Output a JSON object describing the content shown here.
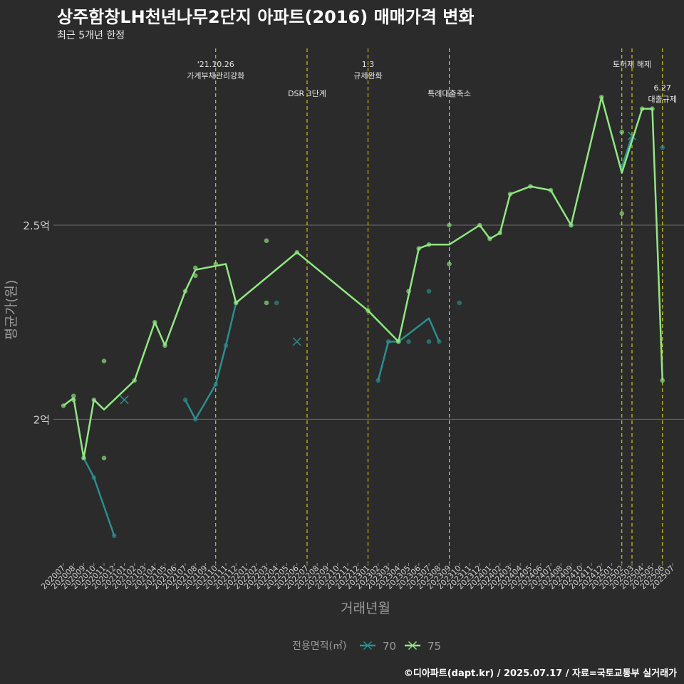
{
  "title": "상주함창LH천년나무2단지 아파트(2016) 매매가격 변화",
  "subtitle": "최근 5개년 한정",
  "caption": "©디아파트(dapt.kr) / 2025.07.17 / 자료=국토교통부 실거래가",
  "colors": {
    "background": "#2b2b2b",
    "grid": "#6e6e6e",
    "event_line": "#e8e800",
    "series_70": "#2a8f8f",
    "series_75": "#90e880",
    "axis_text": "#9a9a9a"
  },
  "chart_data": {
    "type": "line",
    "title": "상주함창LH천년나무2단지 아파트(2016) 매매가격 변화",
    "xlabel": "거래년월",
    "ylabel": "평균가(원)",
    "ylim": [
      1.63,
      2.97
    ],
    "y_ticks": [
      {
        "value": 2.0,
        "label": "2억"
      },
      {
        "value": 2.5,
        "label": "2.5억"
      }
    ],
    "x_categories": [
      "202007",
      "202008",
      "202009",
      "202010",
      "202011",
      "202012",
      "202101",
      "202102",
      "202103",
      "202104",
      "202105",
      "202106",
      "202107",
      "202108",
      "202109",
      "202110",
      "202111",
      "202112",
      "202201",
      "202202",
      "202203",
      "202204",
      "202205",
      "202206",
      "202207",
      "202208",
      "202209",
      "202210",
      "202211",
      "202212",
      "202301",
      "202302",
      "202303",
      "202304",
      "202305",
      "202306",
      "202307",
      "202308",
      "202309",
      "202310",
      "202311",
      "202312",
      "202401",
      "202402",
      "202403",
      "202404",
      "202405",
      "202406",
      "202407",
      "202408",
      "202409",
      "202410",
      "202411",
      "202412",
      "202501",
      "202502",
      "202503",
      "202504",
      "202505",
      "202506",
      "202507"
    ],
    "legend": {
      "title": "전용면적(㎡)",
      "position": "bottom",
      "entries": [
        "70",
        "75"
      ]
    },
    "events": [
      {
        "x": 15,
        "lines": [
          "'21.10.26",
          "가계부채관리강화"
        ],
        "row": 0
      },
      {
        "x": 24,
        "lines": [
          "DSR 3단계"
        ],
        "row": 1
      },
      {
        "x": 30,
        "lines": [
          "1.3",
          "규제완화"
        ],
        "row": 0
      },
      {
        "x": 38,
        "lines": [
          "특례대출축소"
        ],
        "row": 1
      },
      {
        "x": 55,
        "lines": [],
        "row": 0
      },
      {
        "x": 56,
        "lines": [
          "토허제 해제"
        ],
        "row": 0
      },
      {
        "x": 59,
        "lines": [
          "6.27",
          "대출규제"
        ],
        "row": 2
      }
    ],
    "series": [
      {
        "name": "70",
        "line_segments": [
          [
            [
              2,
              1.9
            ],
            [
              3,
              1.85
            ],
            [
              5,
              1.7
            ]
          ],
          [
            [
              12,
              2.05
            ],
            [
              13,
              2.0
            ],
            [
              15,
              2.09
            ],
            [
              16,
              2.19
            ],
            [
              17,
              2.3
            ]
          ],
          [
            [
              31,
              2.1
            ],
            [
              32,
              2.2
            ],
            [
              33,
              2.2
            ],
            [
              34,
              2.22
            ],
            [
              36,
              2.26
            ],
            [
              37,
              2.2
            ]
          ],
          [
            [
              55,
              2.65
            ],
            [
              56,
              2.73
            ]
          ]
        ],
        "points": [
          [
            2,
            1.9
          ],
          [
            3,
            1.85
          ],
          [
            5,
            1.7
          ],
          [
            12,
            2.05
          ],
          [
            13,
            2.0
          ],
          [
            15,
            2.09
          ],
          [
            16,
            2.19
          ],
          [
            17,
            2.3
          ],
          [
            21,
            2.3
          ],
          [
            31,
            2.1
          ],
          [
            32,
            2.2
          ],
          [
            33,
            2.2
          ],
          [
            34,
            2.2
          ],
          [
            36,
            2.2
          ],
          [
            36,
            2.33
          ],
          [
            37,
            2.2
          ],
          [
            39,
            2.3
          ],
          [
            50,
            2.5
          ],
          [
            55,
            2.65
          ],
          [
            59,
            2.7
          ]
        ],
        "single_markers": [
          [
            6,
            2.05
          ],
          [
            23,
            2.2
          ],
          [
            56,
            2.73
          ]
        ]
      },
      {
        "name": "75",
        "line_segments": [
          [
            [
              0,
              2.035
            ],
            [
              1,
              2.055
            ],
            [
              2,
              1.9
            ],
            [
              3,
              2.05
            ],
            [
              4,
              2.025
            ],
            [
              7,
              2.1
            ],
            [
              9,
              2.25
            ],
            [
              10,
              2.19
            ],
            [
              12,
              2.33
            ],
            [
              13,
              2.385
            ],
            [
              16,
              2.4
            ],
            [
              17,
              2.3
            ],
            [
              23,
              2.43
            ],
            [
              30,
              2.28
            ],
            [
              33,
              2.2
            ],
            [
              35,
              2.44
            ],
            [
              36,
              2.45
            ],
            [
              38,
              2.45
            ],
            [
              41,
              2.5
            ],
            [
              42,
              2.465
            ],
            [
              43,
              2.48
            ],
            [
              44,
              2.58
            ],
            [
              46,
              2.6
            ],
            [
              48,
              2.59
            ],
            [
              50,
              2.5
            ],
            [
              53,
              2.83
            ],
            [
              55,
              2.635
            ],
            [
              57,
              2.8
            ],
            [
              58,
              2.8
            ],
            [
              59,
              2.1
            ]
          ]
        ],
        "points": [
          [
            0,
            2.035
          ],
          [
            1,
            2.06
          ],
          [
            1,
            2.05
          ],
          [
            2,
            1.9
          ],
          [
            3,
            2.05
          ],
          [
            4,
            2.15
          ],
          [
            4,
            1.9
          ],
          [
            7,
            2.1
          ],
          [
            9,
            2.25
          ],
          [
            10,
            2.19
          ],
          [
            12,
            2.33
          ],
          [
            13,
            2.39
          ],
          [
            13,
            2.37
          ],
          [
            15,
            2.4
          ],
          [
            17,
            2.3
          ],
          [
            20,
            2.46
          ],
          [
            20,
            2.3
          ],
          [
            23,
            2.43
          ],
          [
            30,
            2.28
          ],
          [
            33,
            2.2
          ],
          [
            34,
            2.33
          ],
          [
            35,
            2.44
          ],
          [
            36,
            2.45
          ],
          [
            38,
            2.5
          ],
          [
            38,
            2.4
          ],
          [
            41,
            2.5
          ],
          [
            42,
            2.465
          ],
          [
            43,
            2.48
          ],
          [
            44,
            2.58
          ],
          [
            46,
            2.6
          ],
          [
            48,
            2.59
          ],
          [
            50,
            2.5
          ],
          [
            53,
            2.83
          ],
          [
            55,
            2.74
          ],
          [
            55,
            2.53
          ],
          [
            57,
            2.8
          ],
          [
            58,
            2.8
          ],
          [
            59,
            2.1
          ]
        ],
        "single_markers": []
      }
    ]
  }
}
